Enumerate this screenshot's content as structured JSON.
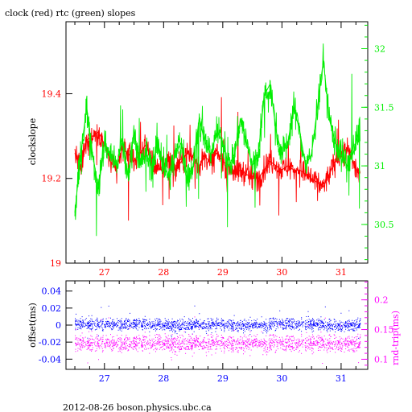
{
  "title": "clock (red) rtc (green) slopes",
  "footer": "2012-08-26  boson.physics.ubc.ca",
  "colors": {
    "red": "#ff0000",
    "green": "#00ee00",
    "blue": "#0000ff",
    "magenta": "#ff00ff",
    "frame": "#000000"
  },
  "chart_data": [
    {
      "type": "line",
      "title": "clock (red) rtc (green) slopes",
      "xlabel": "",
      "ylabel": "clockslope",
      "y2label": "",
      "xlim": [
        26.35,
        31.45
      ],
      "ylim": [
        19.0,
        19.57
      ],
      "y2lim": [
        30.17,
        32.23
      ],
      "x_ticks": [
        27,
        28,
        29,
        30,
        31
      ],
      "y_ticks": [
        19,
        19.2,
        19.4
      ],
      "y2_ticks": [
        30.5,
        31,
        31.5,
        32
      ],
      "series": [
        {
          "name": "clock (red)",
          "axis": "left",
          "color": "#ff0000",
          "x": [
            26.5,
            26.6,
            26.7,
            26.8,
            26.9,
            27.0,
            27.1,
            27.2,
            27.3,
            27.4,
            27.5,
            27.6,
            27.7,
            27.8,
            27.9,
            28.0,
            28.1,
            28.2,
            28.3,
            28.4,
            28.5,
            28.6,
            28.7,
            28.8,
            28.9,
            29.0,
            29.1,
            29.2,
            29.3,
            29.4,
            29.5,
            29.6,
            29.7,
            29.8,
            29.9,
            30.0,
            30.1,
            30.2,
            30.3,
            30.4,
            30.5,
            30.6,
            30.7,
            30.8,
            30.9,
            31.0,
            31.1,
            31.2,
            31.3
          ],
          "y": [
            19.26,
            19.22,
            19.29,
            19.3,
            19.31,
            19.28,
            19.24,
            19.22,
            19.27,
            19.26,
            19.24,
            19.26,
            19.28,
            19.24,
            19.22,
            19.23,
            19.25,
            19.22,
            19.24,
            19.26,
            19.25,
            19.23,
            19.25,
            19.24,
            19.26,
            19.24,
            19.23,
            19.21,
            19.22,
            19.21,
            19.2,
            19.2,
            19.22,
            19.24,
            19.23,
            19.22,
            19.23,
            19.22,
            19.22,
            19.21,
            19.2,
            19.19,
            19.18,
            19.21,
            19.24,
            19.26,
            19.27,
            19.24,
            19.21
          ]
        },
        {
          "name": "rtc (green)",
          "axis": "right",
          "color": "#00ee00",
          "x": [
            26.5,
            26.6,
            26.7,
            26.8,
            26.9,
            27.0,
            27.1,
            27.2,
            27.3,
            27.4,
            27.5,
            27.6,
            27.7,
            27.8,
            27.9,
            28.0,
            28.1,
            28.2,
            28.3,
            28.4,
            28.5,
            28.6,
            28.7,
            28.8,
            28.9,
            29.0,
            29.1,
            29.2,
            29.3,
            29.4,
            29.5,
            29.6,
            29.7,
            29.8,
            29.9,
            30.0,
            30.1,
            30.2,
            30.3,
            30.4,
            30.5,
            30.6,
            30.7,
            30.8,
            30.9,
            31.0,
            31.1,
            31.2,
            31.3
          ],
          "y": [
            30.6,
            31.1,
            31.5,
            31.1,
            30.8,
            31.2,
            31.1,
            31.0,
            31.2,
            30.9,
            31.3,
            31.0,
            31.1,
            31.0,
            31.2,
            31.0,
            30.9,
            31.1,
            31.2,
            30.9,
            31.0,
            31.4,
            31.2,
            31.1,
            31.3,
            31.2,
            31.0,
            31.1,
            31.4,
            31.2,
            31.0,
            31.1,
            31.6,
            31.7,
            31.3,
            31.1,
            31.2,
            31.5,
            31.3,
            31.0,
            31.1,
            31.5,
            31.9,
            31.4,
            31.2,
            31.1,
            31.0,
            31.1,
            31.3
          ]
        }
      ]
    },
    {
      "type": "scatter",
      "title": "",
      "xlabel": "",
      "ylabel": "offset(ms)",
      "y2label": "rnd-trip(ms)",
      "xlim": [
        26.35,
        31.45
      ],
      "ylim": [
        -0.052,
        0.052
      ],
      "y2lim": [
        0.083,
        0.232
      ],
      "x_ticks": [
        27,
        28,
        29,
        30,
        31
      ],
      "y_ticks": [
        -0.04,
        -0.02,
        0,
        0.02,
        0.04
      ],
      "y2_ticks": [
        0.1,
        0.15,
        0.2
      ],
      "series": [
        {
          "name": "offset",
          "axis": "left",
          "color": "#0000ff",
          "x": [
            26.5,
            27.0,
            27.5,
            28.0,
            28.5,
            29.0,
            29.5,
            30.0,
            30.5,
            31.0,
            31.3
          ],
          "y": [
            0.002,
            0.001,
            0.002,
            0.0,
            0.001,
            0.001,
            0.0,
            0.002,
            0.001,
            0.0,
            0.001
          ]
        },
        {
          "name": "rnd-trip",
          "axis": "right",
          "color": "#ff00ff",
          "x": [
            26.5,
            27.0,
            27.5,
            28.0,
            28.5,
            29.0,
            29.5,
            30.0,
            30.5,
            31.0,
            31.3
          ],
          "y": [
            0.128,
            0.127,
            0.128,
            0.127,
            0.128,
            0.127,
            0.128,
            0.127,
            0.127,
            0.128,
            0.127
          ]
        }
      ]
    }
  ]
}
